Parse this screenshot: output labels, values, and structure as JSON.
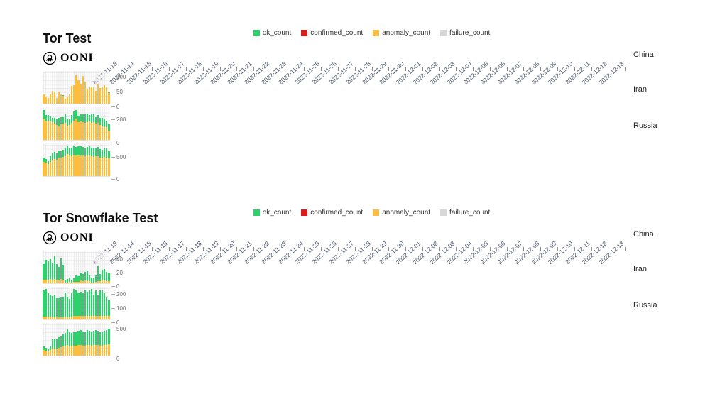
{
  "brand": {
    "wordmark": "OONI"
  },
  "colors": {
    "ok": "#2ed06c",
    "confirmed": "#e01a1a",
    "anomaly": "#fdbe3f",
    "failure": "#d8d8d8",
    "grid": "#ececec",
    "axis_text": "#707070",
    "date_text": "#4a5568"
  },
  "chart_data": [
    {
      "type": "bar",
      "title": "Tor Test",
      "stacked": true,
      "legend": [
        "ok_count",
        "confirmed_count",
        "anomaly_count",
        "failure_count"
      ],
      "legend_position": "top-center",
      "grid": true,
      "categories": [
        "2022-11-13",
        "2022-11-14",
        "2022-11-15",
        "2022-11-16",
        "2022-11-17",
        "2022-11-18",
        "2022-11-19",
        "2022-11-20",
        "2022-11-21",
        "2022-11-22",
        "2022-11-23",
        "2022-11-24",
        "2022-11-25",
        "2022-11-26",
        "2022-11-27",
        "2022-11-28",
        "2022-11-29",
        "2022-11-30",
        "2022-12-01",
        "2022-12-02",
        "2022-12-03",
        "2022-12-04",
        "2022-12-05",
        "2022-12-06",
        "2022-12-07",
        "2022-12-08",
        "2022-12-09",
        "2022-12-10",
        "2022-12-11",
        "2022-12-12",
        "2022-12-13"
      ],
      "rows": [
        {
          "country": "China",
          "ymax": 110,
          "ticks": [
            {
              "v": 0,
              "label": "0"
            },
            {
              "v": 50,
              "label": "50"
            },
            {
              "v": 100,
              "label": "100"
            }
          ],
          "series": {
            "anomaly_count": [
              30,
              25,
              20,
              30,
              42,
              38,
              20,
              40,
              32,
              26,
              17,
              24,
              30,
              60,
              62,
              95,
              80,
              66,
              93,
              74,
              48,
              55,
              55,
              54,
              44,
              66,
              52,
              55,
              62,
              56,
              35
            ],
            "ok_count": [
              0,
              0,
              0,
              0,
              0,
              2,
              0,
              0,
              0,
              2,
              0,
              0,
              0,
              0,
              0,
              0,
              0,
              2,
              0,
              0,
              0,
              0,
              2,
              0,
              0,
              0,
              0,
              0,
              0,
              0,
              3
            ],
            "confirmed_count": 0,
            "failure_count": 0
          }
        },
        {
          "country": "Iran",
          "ymax": 280,
          "ticks": [
            {
              "v": 0,
              "label": "0"
            },
            {
              "v": 200,
              "label": "200"
            }
          ],
          "series": {
            "anomaly_count": [
              185,
              160,
              165,
              160,
              155,
              140,
              128,
              118,
              132,
              138,
              148,
              124,
              130,
              148,
              165,
              182,
              150,
              158,
              152,
              148,
              154,
              158,
              148,
              152,
              138,
              148,
              128,
              118,
              112,
              108,
              80
            ],
            "ok_count": [
              70,
              55,
              50,
              40,
              35,
              48,
              55,
              68,
              62,
              55,
              72,
              55,
              50,
              65,
              80,
              72,
              55,
              62,
              68,
              70,
              72,
              58,
              72,
              68,
              58,
              68,
              58,
              72,
              72,
              58,
              52
            ],
            "confirmed_count": 0,
            "failure_count": 0
          }
        },
        {
          "country": "Russia",
          "ymax": 750,
          "ticks": [
            {
              "v": 0,
              "label": "0"
            },
            {
              "v": 500,
              "label": "500"
            }
          ],
          "series": {
            "anomaly_count": [
              330,
              315,
              270,
              330,
              380,
              390,
              370,
              430,
              420,
              440,
              460,
              500,
              470,
              450,
              490,
              480,
              470,
              480,
              470,
              460,
              470,
              480,
              460,
              440,
              450,
              460,
              430,
              420,
              440,
              430,
              400
            ],
            "ok_count": [
              100,
              80,
              75,
              120,
              160,
              165,
              155,
              160,
              160,
              170,
              180,
              190,
              190,
              200,
              210,
              190,
              210,
              200,
              200,
              190,
              200,
              210,
              200,
              190,
              200,
              210,
              190,
              180,
              190,
              200,
              175
            ],
            "confirmed_count": 0,
            "failure_count": 0
          }
        }
      ]
    },
    {
      "type": "bar",
      "title": "Tor Snowflake Test",
      "stacked": true,
      "legend": [
        "ok_count",
        "confirmed_count",
        "anomaly_count",
        "failure_count"
      ],
      "legend_position": "top-center",
      "grid": true,
      "categories": [
        "2022-11-13",
        "2022-11-14",
        "2022-11-15",
        "2022-11-16",
        "2022-11-17",
        "2022-11-18",
        "2022-11-19",
        "2022-11-20",
        "2022-11-21",
        "2022-11-22",
        "2022-11-23",
        "2022-11-24",
        "2022-11-25",
        "2022-11-26",
        "2022-11-27",
        "2022-11-28",
        "2022-11-29",
        "2022-11-30",
        "2022-12-01",
        "2022-12-02",
        "2022-12-03",
        "2022-12-04",
        "2022-12-05",
        "2022-12-06",
        "2022-12-07",
        "2022-12-08",
        "2022-12-09",
        "2022-12-10",
        "2022-12-11",
        "2022-12-12",
        "2022-12-13"
      ],
      "rows": [
        {
          "country": "China",
          "ymax": 48,
          "ticks": [
            {
              "v": 0,
              "label": "0"
            },
            {
              "v": 20,
              "label": "20"
            },
            {
              "v": 40,
              "label": "40"
            }
          ],
          "series": {
            "anomaly_count": [
              5,
              5,
              5,
              6,
              5,
              6,
              5,
              4,
              6,
              5,
              1,
              1,
              2,
              1,
              2,
              2,
              2,
              4,
              3,
              4,
              3,
              3,
              1,
              1,
              2,
              3,
              3,
              5,
              4,
              3,
              3
            ],
            "ok_count": [
              23,
              29,
              28,
              30,
              24,
              34,
              23,
              20,
              31,
              22,
              4,
              5,
              6,
              3,
              5,
              9,
              8,
              12,
              11,
              13,
              15,
              10,
              6,
              7,
              9,
              22,
              11,
              15,
              17,
              14,
              13
            ],
            "confirmed_count": 0,
            "failure_count": 0
          }
        },
        {
          "country": "Iran",
          "ymax": 230,
          "ticks": [
            {
              "v": 0,
              "label": "0"
            },
            {
              "v": 100,
              "label": "100"
            },
            {
              "v": 200,
              "label": "200"
            }
          ],
          "series": {
            "anomaly_count": [
              20,
              20,
              20,
              18,
              15,
              16,
              18,
              16,
              16,
              15,
              20,
              16,
              15,
              20,
              25,
              25,
              25,
              25,
              25,
              25,
              25,
              25,
              25,
              25,
              25,
              25,
              25,
              25,
              25,
              25,
              25
            ],
            "ok_count": [
              185,
              195,
              165,
              155,
              148,
              152,
              130,
              132,
              142,
              138,
              172,
              142,
              132,
              165,
              188,
              178,
              162,
              168,
              158,
              185,
              172,
              178,
              192,
              148,
              178,
              152,
              182,
              182,
              158,
              128,
              112
            ],
            "confirmed_count": 0,
            "failure_count": 0
          }
        },
        {
          "country": "Russia",
          "ymax": 550,
          "ticks": [
            {
              "v": 0,
              "label": "0"
            },
            {
              "v": 500,
              "label": "500"
            }
          ],
          "series": {
            "anomaly_count": [
              90,
              80,
              70,
              90,
              120,
              120,
              120,
              130,
              140,
              150,
              160,
              180,
              160,
              160,
              170,
              170,
              180,
              180,
              170,
              170,
              180,
              180,
              170,
              180,
              180,
              180,
              170,
              170,
              180,
              180,
              190
            ],
            "ok_count": [
              70,
              50,
              40,
              60,
              160,
              170,
              160,
              190,
              200,
              210,
              220,
              260,
              230,
              220,
              230,
              220,
              240,
              250,
              230,
              240,
              250,
              240,
              230,
              240,
              250,
              240,
              230,
              220,
              240,
              250,
              260
            ],
            "confirmed_count": 0,
            "failure_count": 0
          }
        }
      ]
    }
  ]
}
